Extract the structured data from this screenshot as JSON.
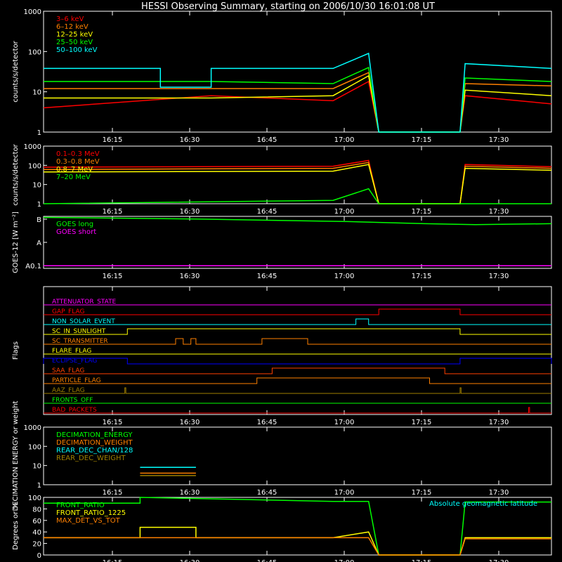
{
  "title": "HESSI Observing Summary, starting on 2006/10/30 16:01:08 UT",
  "x_ticks": [
    "16:15",
    "16:30",
    "16:45",
    "17:00",
    "17:15",
    "17:30"
  ],
  "colors": {
    "red": "#ff0000",
    "orange": "#ff8000",
    "yellow": "#ffff00",
    "green": "#00ff00",
    "cyan": "#00ffff",
    "magenta": "#ff00ff",
    "blue": "#0000ff",
    "olive": "#a08000",
    "white": "#ffffff"
  },
  "chart_data": [
    {
      "type": "line",
      "ylabel": "counts/s/detector",
      "yscale": "log",
      "ylim": [
        1,
        1000
      ],
      "y_ticks": [
        "1",
        "10",
        "100",
        "1000"
      ],
      "x_range": [
        "16:01:08",
        "17:41"
      ],
      "series": [
        {
          "name": "3–6 keV",
          "color": "#ff0000",
          "approx": [
            [
              0,
              4
            ],
            [
              0.33,
              8
            ],
            [
              0.57,
              6
            ],
            [
              0.64,
              18
            ],
            [
              0.66,
              0
            ],
            [
              0.82,
              0
            ],
            [
              0.83,
              8
            ],
            [
              1,
              5
            ]
          ]
        },
        {
          "name": "6–12 keV",
          "color": "#ff8000",
          "approx": [
            [
              0,
              12
            ],
            [
              0.33,
              12
            ],
            [
              0.57,
              12
            ],
            [
              0.64,
              30
            ],
            [
              0.66,
              0
            ],
            [
              0.82,
              0
            ],
            [
              0.83,
              16
            ],
            [
              1,
              14
            ]
          ]
        },
        {
          "name": "12–25 keV",
          "color": "#ffff00",
          "approx": [
            [
              0,
              7
            ],
            [
              0.33,
              7
            ],
            [
              0.57,
              8
            ],
            [
              0.64,
              25
            ],
            [
              0.66,
              0
            ],
            [
              0.82,
              0
            ],
            [
              0.83,
              11
            ],
            [
              1,
              8
            ]
          ]
        },
        {
          "name": "25–50 keV",
          "color": "#00ff00",
          "approx": [
            [
              0,
              18
            ],
            [
              0.33,
              18
            ],
            [
              0.57,
              16
            ],
            [
              0.64,
              40
            ],
            [
              0.66,
              0
            ],
            [
              0.82,
              0
            ],
            [
              0.83,
              22
            ],
            [
              1,
              18
            ]
          ]
        },
        {
          "name": "50–100 keV",
          "color": "#00ffff",
          "approx": [
            [
              0,
              38
            ],
            [
              0.23,
              38
            ],
            [
              0.23,
              13
            ],
            [
              0.33,
              13
            ],
            [
              0.33,
              38
            ],
            [
              0.57,
              38
            ],
            [
              0.64,
              90
            ],
            [
              0.66,
              0
            ],
            [
              0.82,
              0
            ],
            [
              0.83,
              50
            ],
            [
              1,
              38
            ]
          ]
        }
      ]
    },
    {
      "type": "line",
      "ylabel": "counts/s/detector",
      "yscale": "log",
      "ylim": [
        1,
        1000
      ],
      "y_ticks": [
        "1",
        "10",
        "100",
        "1000"
      ],
      "series": [
        {
          "name": "0.1–0.3 MeV",
          "color": "#ff0000",
          "approx": [
            [
              0,
              80
            ],
            [
              0.57,
              90
            ],
            [
              0.64,
              180
            ],
            [
              0.66,
              0
            ],
            [
              0.82,
              0
            ],
            [
              0.83,
              110
            ],
            [
              1,
              85
            ]
          ]
        },
        {
          "name": "0.3–0.8 MeV",
          "color": "#ff8000",
          "approx": [
            [
              0,
              60
            ],
            [
              0.57,
              70
            ],
            [
              0.64,
              140
            ],
            [
              0.66,
              0
            ],
            [
              0.82,
              0
            ],
            [
              0.83,
              90
            ],
            [
              1,
              70
            ]
          ]
        },
        {
          "name": "0.8–7 MeV",
          "color": "#ffff00",
          "approx": [
            [
              0,
              45
            ],
            [
              0.57,
              50
            ],
            [
              0.64,
              110
            ],
            [
              0.66,
              0
            ],
            [
              0.82,
              0
            ],
            [
              0.83,
              70
            ],
            [
              1,
              55
            ]
          ]
        },
        {
          "name": "7–20 MeV",
          "color": "#00ff00",
          "approx": [
            [
              0,
              1
            ],
            [
              0.57,
              1.5
            ],
            [
              0.64,
              6
            ],
            [
              0.66,
              0
            ],
            [
              0.82,
              0
            ],
            [
              0.83,
              1
            ],
            [
              1,
              1
            ]
          ]
        }
      ]
    },
    {
      "type": "line",
      "ylabel": "GOES-12 [W m⁻²]",
      "y_ticks": [
        "A0.1",
        "A",
        "B"
      ],
      "series": [
        {
          "name": "GOES long",
          "color": "#00ff00",
          "approx": [
            [
              0,
              0.98
            ],
            [
              0.3,
              0.95
            ],
            [
              0.6,
              0.9
            ],
            [
              0.75,
              0.86
            ],
            [
              0.85,
              0.84
            ],
            [
              1,
              0.86
            ]
          ]
        },
        {
          "name": "GOES short",
          "color": "#ff00ff",
          "approx": [
            [
              0,
              0.05
            ],
            [
              1,
              0.05
            ]
          ]
        }
      ]
    },
    {
      "type": "line",
      "ylabel": "Flags",
      "flags": [
        {
          "name": "ATTENUATOR_STATE",
          "color": "#ff00ff",
          "segments": []
        },
        {
          "name": "GAP_FLAG",
          "color": "#ff0000",
          "segments": [
            [
              0.66,
              0.82
            ]
          ]
        },
        {
          "name": "NON_SOLAR_EVENT",
          "color": "#00ffff",
          "segments": [
            [
              0.615,
              0.64
            ]
          ]
        },
        {
          "name": "SC_IN_SUNLIGHT",
          "color": "#ffff00",
          "segments": [
            [
              0.165,
              0.82
            ]
          ]
        },
        {
          "name": "SC_TRANSMITTER",
          "color": "#ff8000",
          "segments": [
            [
              0.26,
              0.275
            ],
            [
              0.29,
              0.3
            ],
            [
              0.43,
              0.52
            ]
          ]
        },
        {
          "name": "FLARE_FLAG",
          "color": "#ffff00",
          "segments": []
        },
        {
          "name": "ECLIPSE_FLAG",
          "color": "#0000ff",
          "segments": [
            [
              0,
              0.165
            ],
            [
              0.82,
              1
            ]
          ]
        },
        {
          "name": "SAA_FLAG",
          "color": "#ff4000",
          "segments": [
            [
              0.45,
              0.79
            ]
          ]
        },
        {
          "name": "PARTICLE_FLAG",
          "color": "#ff8000",
          "segments": [
            [
              0.42,
              0.76
            ]
          ]
        },
        {
          "name": "AAZ_FLAG",
          "color": "#a08000",
          "segments": [
            [
              0.16,
              0.162
            ],
            [
              0.82,
              0.822
            ]
          ]
        },
        {
          "name": "FRONTS_OFF",
          "color": "#00ff00",
          "segments": []
        },
        {
          "name": "BAD_PACKETS",
          "color": "#ff0000",
          "segments": [
            [
              0.955,
              0.957
            ]
          ]
        }
      ]
    },
    {
      "type": "line",
      "ylabel": "DECIMATION ENERGY or weight",
      "yscale": "log",
      "ylim": [
        1,
        1000
      ],
      "y_ticks": [
        "1",
        "10",
        "100",
        "1000"
      ],
      "series": [
        {
          "name": "DECIMATION_ENERGY",
          "color": "#00ff00",
          "approx": []
        },
        {
          "name": "DECIMATION_WEIGHT",
          "color": "#ff8000",
          "approx": [
            [
              0.19,
              4
            ],
            [
              0.3,
              4
            ]
          ]
        },
        {
          "name": "REAR_DEC_CHAN/128",
          "color": "#00ffff",
          "approx": [
            [
              0.19,
              8
            ],
            [
              0.3,
              8
            ]
          ]
        },
        {
          "name": "REAR_DEC_WEIGHT",
          "color": "#a08000",
          "approx": [
            [
              0.19,
              3
            ],
            [
              0.3,
              3
            ]
          ]
        }
      ]
    },
    {
      "type": "line",
      "ylabel": "Degrees or %",
      "ylim": [
        0,
        100
      ],
      "y_ticks": [
        "0",
        "20",
        "40",
        "60",
        "80",
        "100"
      ],
      "annotation": "Absolute geomagnetic latitude",
      "series": [
        {
          "name": "FRONT_RATIO",
          "color": "#00ff00",
          "approx": [
            [
              0,
              90
            ],
            [
              0.19,
              90
            ],
            [
              0.19,
              100
            ],
            [
              0.57,
              93
            ],
            [
              0.64,
              93
            ],
            [
              0.66,
              0
            ],
            [
              0.82,
              0
            ],
            [
              0.83,
              92
            ],
            [
              1,
              92
            ]
          ]
        },
        {
          "name": "FRONT_RATIO_1225",
          "color": "#ffff00",
          "approx": [
            [
              0,
              30
            ],
            [
              0.19,
              30
            ],
            [
              0.19,
              48
            ],
            [
              0.3,
              48
            ],
            [
              0.3,
              30
            ],
            [
              0.57,
              30
            ],
            [
              0.64,
              40
            ],
            [
              0.66,
              0
            ],
            [
              0.82,
              0
            ],
            [
              0.83,
              30
            ],
            [
              1,
              30
            ]
          ]
        },
        {
          "name": "MAX_DET_VS_TOT",
          "color": "#ff8000",
          "approx": [
            [
              0,
              30
            ],
            [
              0.64,
              30
            ],
            [
              0.66,
              0
            ],
            [
              0.82,
              0
            ],
            [
              0.83,
              28
            ],
            [
              1,
              28
            ]
          ]
        }
      ]
    }
  ]
}
